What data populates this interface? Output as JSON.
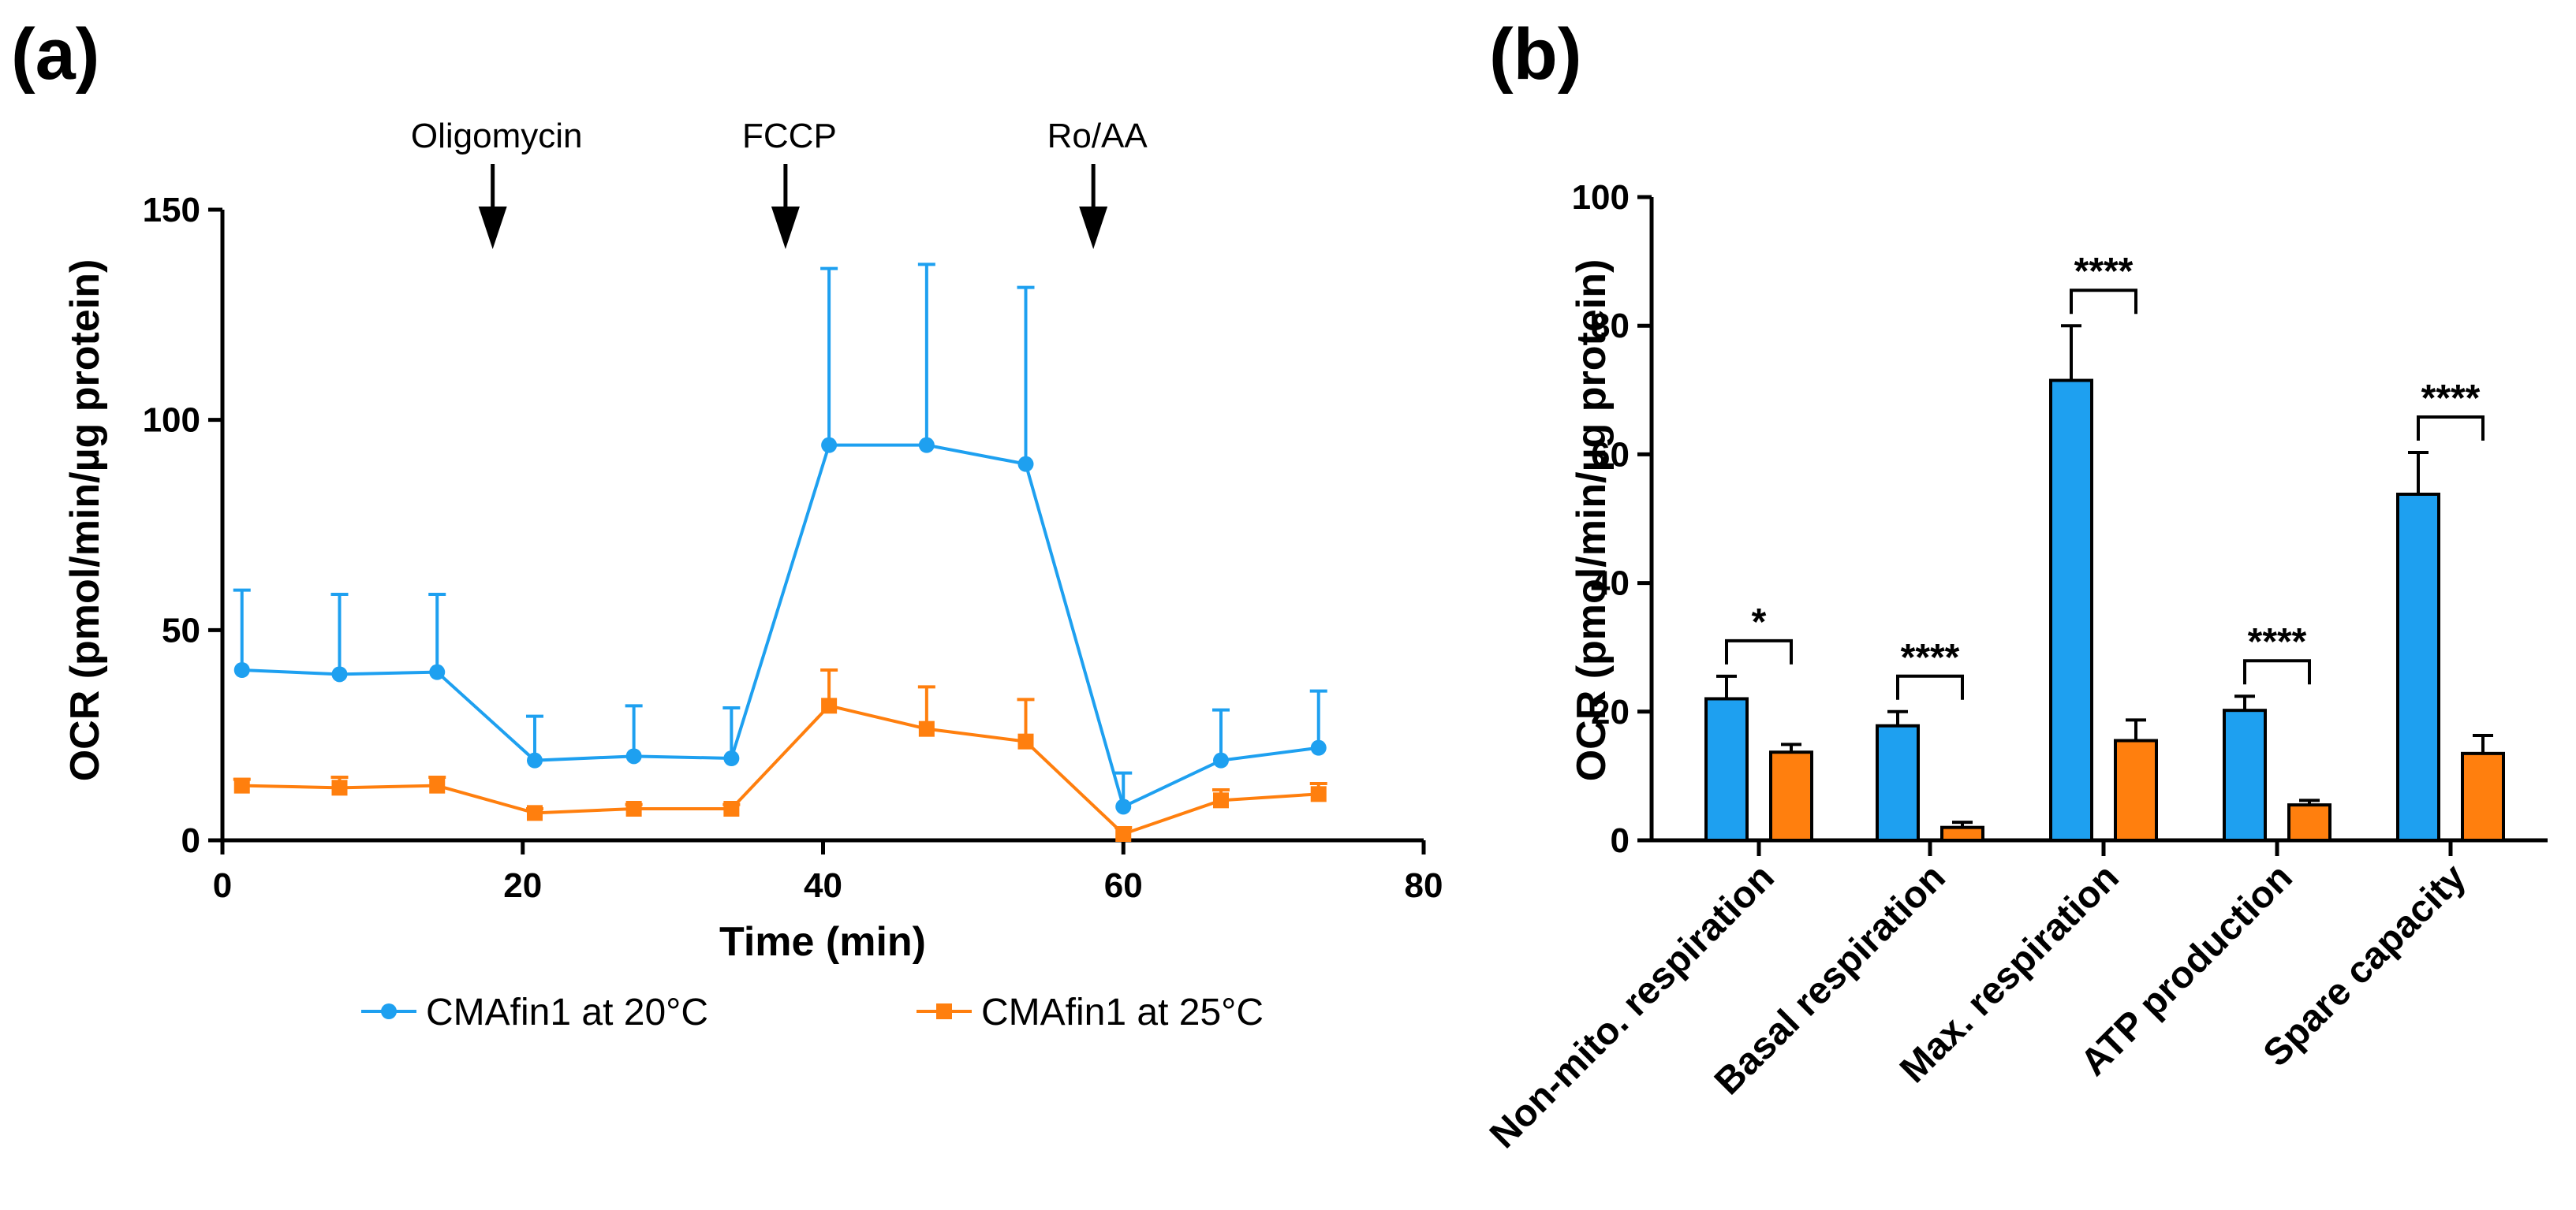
{
  "panel_a_label": "(a)",
  "panel_b_label": "(b)",
  "chart_data": [
    {
      "type": "line",
      "panel": "(a)",
      "xlabel": "Time (min)",
      "ylabel": "OCR (pmol/min/µg protein)",
      "xlim": [
        0,
        80
      ],
      "ylim": [
        0,
        150
      ],
      "xticks": [
        0,
        20,
        40,
        60,
        80
      ],
      "yticks": [
        0,
        50,
        100,
        150
      ],
      "x": [
        1.3,
        7.8,
        14.3,
        20.8,
        27.4,
        33.9,
        40.4,
        46.9,
        53.5,
        60.0,
        66.5,
        73.0
      ],
      "series": [
        {
          "name": "CMAfin1 at 20°C",
          "color": "#1ea0f0",
          "marker": "circle",
          "values": [
            40.5,
            39.5,
            40,
            19,
            20,
            19.5,
            94,
            94,
            89.5,
            8,
            19,
            22
          ],
          "errors": [
            19,
            19,
            18.5,
            10.5,
            12,
            12,
            42,
            43,
            42,
            8,
            12,
            13.5
          ]
        },
        {
          "name": "CMAfin1 at 25°C",
          "color": "#ff7f0e",
          "marker": "square",
          "values": [
            13,
            12.5,
            13,
            6.5,
            7.5,
            7.5,
            32,
            26.5,
            23.5,
            1.5,
            9.5,
            11
          ],
          "errors": [
            1.5,
            2.5,
            2,
            1,
            1,
            1,
            8.5,
            10,
            10,
            1.5,
            2.5,
            2.5
          ]
        }
      ],
      "annotations": [
        {
          "label": "Oligomycin",
          "x": 18
        },
        {
          "label": "FCCP",
          "x": 37.5
        },
        {
          "label": "Ro/AA",
          "x": 58
        }
      ],
      "legend_position": "bottom"
    },
    {
      "type": "bar",
      "panel": "(b)",
      "ylabel": "OCR (pmol/min/µg protein)",
      "ylim": [
        0,
        100
      ],
      "yticks": [
        0,
        20,
        40,
        60,
        80,
        100
      ],
      "categories": [
        "Non-mito. respiration",
        "Basal respiration",
        "Max. respiration",
        "ATP production",
        "Spare capacity"
      ],
      "series": [
        {
          "name": "CMAfin1 at 20°C",
          "color": "#1ea0f0",
          "values": [
            22,
            17.8,
            71.5,
            20.2,
            53.8
          ],
          "errors": [
            3.5,
            2.2,
            8.5,
            2.2,
            6.5
          ]
        },
        {
          "name": "CMAfin1 at 25°C",
          "color": "#ff7f0e",
          "values": [
            13.7,
            2,
            15.5,
            5.5,
            13.5
          ],
          "errors": [
            1.2,
            0.8,
            3.2,
            0.7,
            2.8
          ]
        }
      ],
      "significance": [
        "*",
        "****",
        "****",
        "****",
        "****"
      ]
    }
  ]
}
